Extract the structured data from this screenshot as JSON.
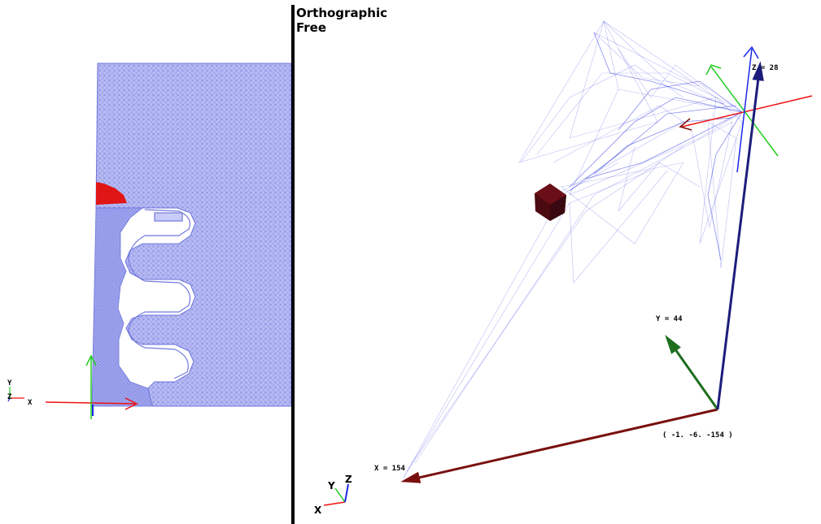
{
  "viewport_right": {
    "projection_label": "Orthographic",
    "camera_mode_label": "Free",
    "axis_labels": {
      "z_label": "Z = 28",
      "y_label": "Y = 44",
      "x_label": "X = 154",
      "origin_label": "( -1. -6. -154 )"
    },
    "triad": {
      "x": "X",
      "y": "Y",
      "z": "Z"
    }
  },
  "viewport_left": {
    "triad": {
      "x": "X",
      "y": "Y",
      "z": "Z"
    }
  },
  "colors": {
    "mesh": "#3b3bdc",
    "mesh_fill": "#a9aef0",
    "divider": "#000000",
    "x_axis": "#ee1111",
    "y_axis": "#22cc22",
    "z_axis": "#1a28e8",
    "dark_x": "#7a0f0f",
    "dark_y": "#1e6e1e",
    "dark_z": "#1c1c7c",
    "red_marker": "#e01515",
    "cube": "#4a0a10"
  }
}
